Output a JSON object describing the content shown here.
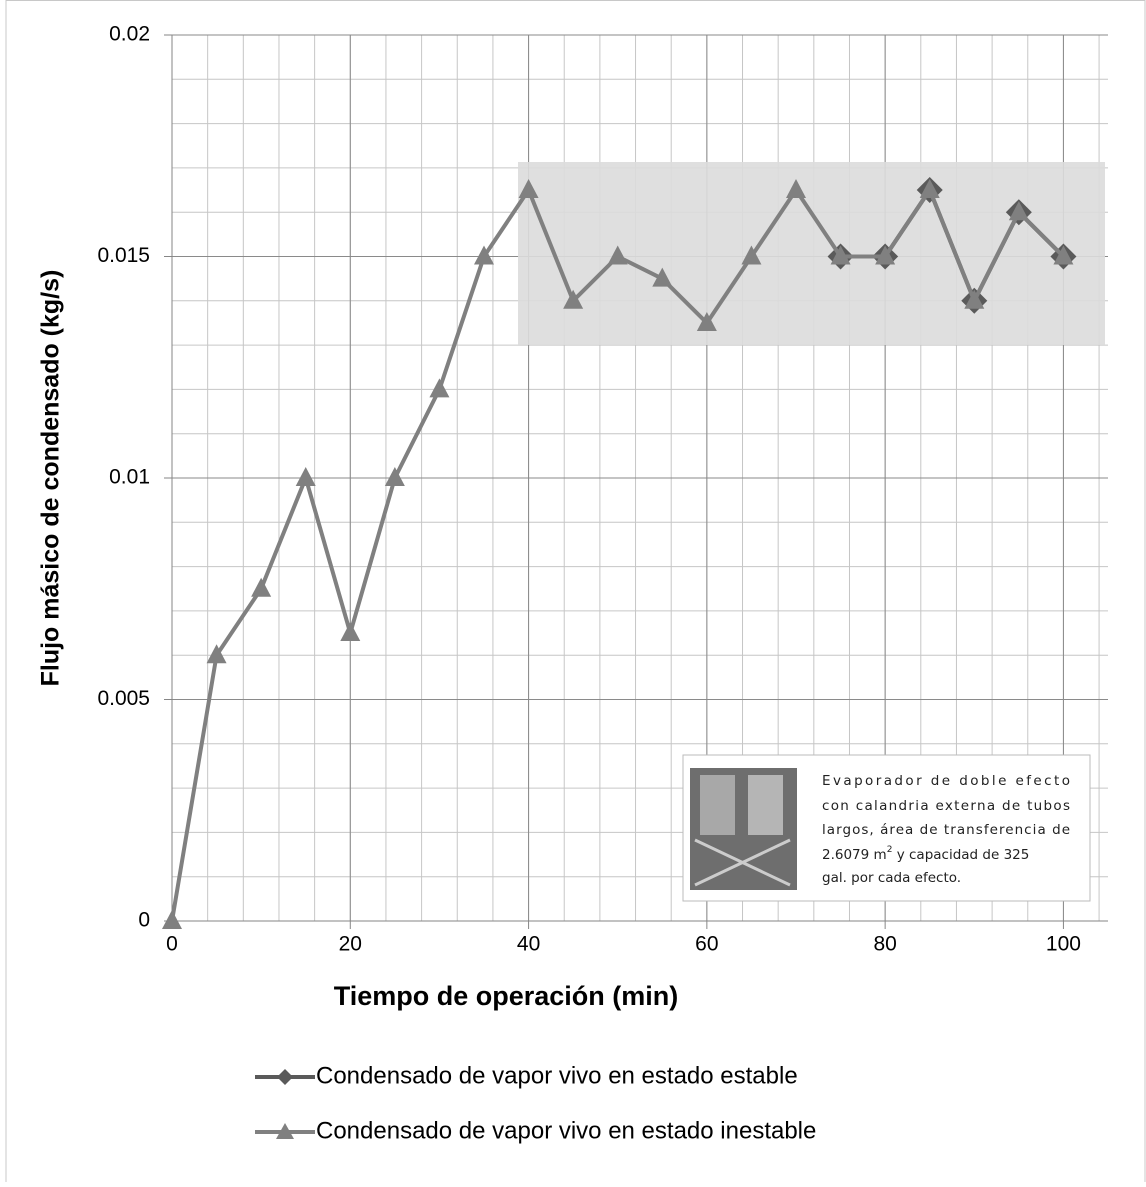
{
  "chart_data": {
    "type": "line",
    "x_label": "Tiempo de operación (min)",
    "y_label": "Flujo másico de condensado (kg/s)",
    "x": [
      0,
      5,
      10,
      15,
      20,
      25,
      30,
      35,
      40,
      45,
      50,
      55,
      60,
      65,
      70,
      75,
      80,
      85,
      90,
      95,
      100
    ],
    "series": [
      {
        "name": "Condensado de vapor vivo en estado estable",
        "color": "#5a5a5a",
        "marker": "diamond",
        "values": [
          null,
          null,
          null,
          null,
          null,
          null,
          null,
          null,
          null,
          null,
          null,
          null,
          null,
          null,
          null,
          0.015,
          0.015,
          0.0165,
          0.014,
          0.016,
          0.015
        ]
      },
      {
        "name": "Condensado de vapor vivo en estado inestable",
        "color": "#808080",
        "marker": "triangle",
        "values": [
          0,
          0.006,
          0.0075,
          0.01,
          0.0065,
          0.01,
          0.012,
          0.015,
          0.0165,
          0.014,
          0.015,
          0.0145,
          0.0135,
          0.015,
          0.0165,
          0.015,
          0.015,
          0.0165,
          0.014,
          0.016,
          0.015
        ]
      }
    ],
    "xlim": [
      0,
      105
    ],
    "xticks": [
      0,
      20,
      40,
      60,
      80,
      100
    ],
    "ylim": [
      0,
      0.02
    ],
    "yticks": [
      0,
      0.005,
      0.01,
      0.015,
      0.02
    ],
    "grid": true,
    "minor_grid": {
      "x": 4,
      "y": 0.001
    },
    "legend": "bottom",
    "annotation": {
      "lines": [
        "Evaporador de doble efecto",
        "con calandria externa de tubos",
        "largos, área de transferencia de"
      ],
      "line4": [
        "2.6079 m",
        "2",
        " y capacidad de 325"
      ],
      "last": "gal. por cada efecto."
    }
  }
}
